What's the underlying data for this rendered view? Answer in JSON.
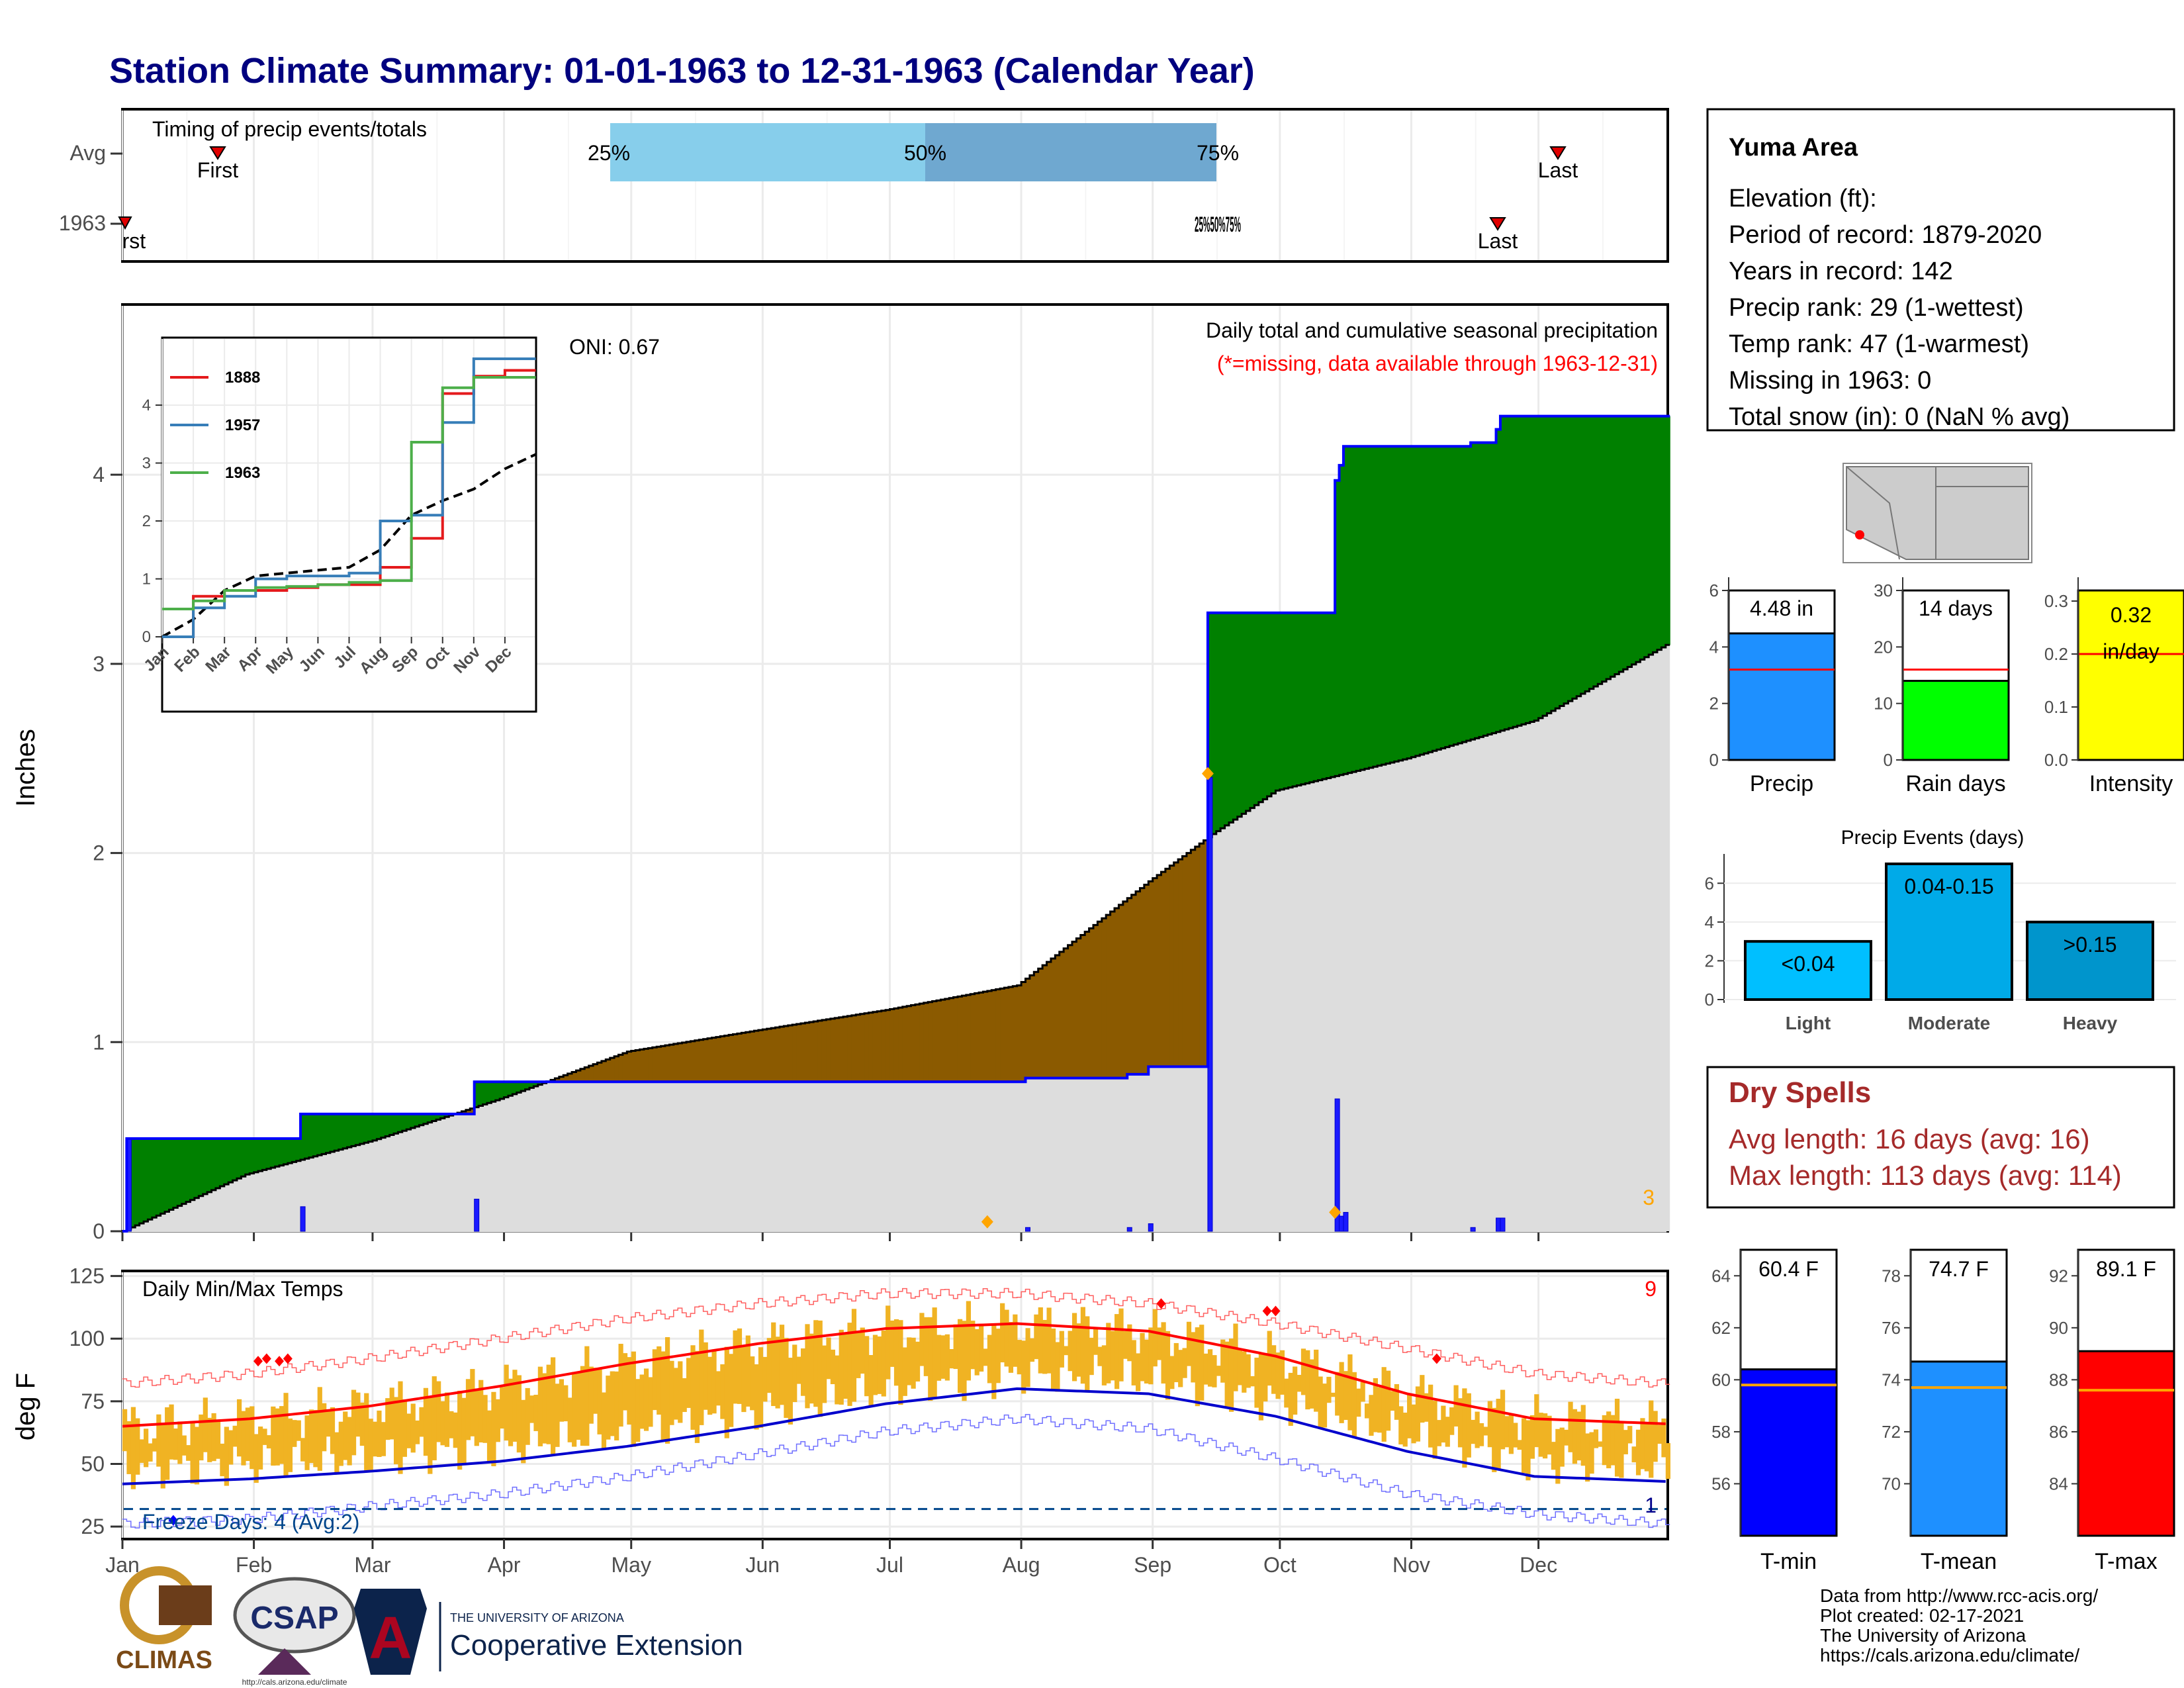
{
  "title": "Station Climate Summary: 01-01-1963 to 12-31-1963 (Calendar Year)",
  "timing": {
    "label": "Timing of precip events/totals",
    "rows": [
      "Avg",
      "1963"
    ],
    "avg": {
      "first_label": "First",
      "last_label": "Last",
      "q25": "25%",
      "q50": "50%",
      "q75": "75%"
    },
    "y1963": {
      "first_label": "First",
      "last_label": "Last",
      "overlap_label": "25%50%75%"
    }
  },
  "months": [
    "Jan",
    "Feb",
    "Mar",
    "Apr",
    "May",
    "Jun",
    "Jul",
    "Aug",
    "Sep",
    "Oct",
    "Nov",
    "Dec"
  ],
  "station": {
    "name": "Yuma Area",
    "lines": [
      "Elevation (ft):",
      "Period of record: 1879-2020",
      "Years in record: 142",
      "Precip rank: 29 (1-wettest)",
      "Temp rank: 47 (1-warmest)",
      "Missing in 1963: 0",
      "Total snow (in): 0 (NaN % avg)"
    ]
  },
  "precip_panel": {
    "ylabel": "Inches",
    "annotation1": "Daily total and cumulative seasonal precipitation",
    "annotation2": "(*=missing, data available through 1963-12-31)",
    "oni": "ONI: 0.67",
    "corner_count": "3",
    "colors": {
      "above": "#008000",
      "below": "#8b5a00",
      "cum_line": "#0000ff",
      "normal": "#dddddd",
      "daily": "#1a1aff",
      "marker": "#ffa500"
    }
  },
  "inset": {
    "legend": [
      "1888",
      "1957",
      "1963"
    ],
    "colors": [
      "#e41a1c",
      "#377eb8",
      "#4daf4a"
    ]
  },
  "mini_bars": [
    {
      "label": "Precip",
      "value_label": "4.48 in",
      "color": "#1e90ff"
    },
    {
      "label": "Rain days",
      "value_label": "14 days",
      "color": "#00ff00"
    },
    {
      "label": "Intensity",
      "value_label": "0.32 in/day",
      "color": "#ffff00"
    }
  ],
  "events": {
    "title": "Precip Events (days)",
    "categories": [
      "Light",
      "Moderate",
      "Heavy"
    ],
    "labels": [
      "<0.04",
      "0.04-0.15",
      ">0.15"
    ],
    "colors": [
      "#00bfff",
      "#00aae8",
      "#0095cc"
    ]
  },
  "dry_spells": {
    "title": "Dry Spells",
    "avg": "Avg length: 16 days (avg: 16)",
    "max": "Max length: 113 days (avg: 114)"
  },
  "temp_panel": {
    "label": "Daily Min/Max Temps",
    "ylabel": "deg F",
    "freeze": "Freeze Days: 4 (Avg:2)",
    "count_top": "9",
    "count_bottom": "1"
  },
  "temp_bars": [
    {
      "label": "T-min",
      "value_label": "60.4 F",
      "color": "#0000ff"
    },
    {
      "label": "T-mean",
      "value_label": "74.7 F",
      "color": "#1e90ff"
    },
    {
      "label": "T-max",
      "value_label": "89.1 F",
      "color": "#ff0000"
    }
  ],
  "footer": {
    "lines": [
      "Data from http://www.rcc-acis.org/",
      "Plot created: 02-17-2021",
      "The University of Arizona",
      "https://cals.arizona.edu/climate/"
    ],
    "climas": "CLIMAS",
    "csap": "CSAP",
    "csap_url": "http://cals.arizona.edu/climate",
    "ua_small": "THE UNIVERSITY OF ARIZONA",
    "ua_big": "Cooperative Extension"
  },
  "chart_data": [
    {
      "type": "area",
      "title": "Daily total and cumulative seasonal precipitation",
      "ylabel": "Inches",
      "xlabel": "",
      "ylim": [
        0,
        4.9
      ],
      "x_unit": "day of year 1963",
      "cumulative_1963": [
        [
          1,
          0.49
        ],
        [
          88,
          0.49
        ],
        [
          89,
          0.62
        ],
        [
          168,
          0.62
        ],
        [
          169,
          0.8
        ],
        [
          412,
          0.8
        ],
        [
          413,
          0.84
        ],
        [
          474,
          0.84
        ],
        [
          475,
          0.85
        ],
        [
          524,
          0.85
        ],
        [
          525,
          0.87
        ],
        [
          553,
          0.87
        ],
        [
          554,
          0.9
        ],
        [
          557,
          0.9
        ],
        [
          558,
          0.94
        ],
        [
          589,
          0.94
        ],
        [
          590,
          0.96
        ],
        [
          258,
          3.36
        ],
        [
          283,
          3.36
        ],
        [
          284,
          3.48
        ],
        [
          285,
          4.2
        ],
        [
          286,
          4.3
        ],
        [
          326,
          4.3
        ],
        [
          327,
          4.42
        ],
        [
          328,
          4.48
        ],
        [
          365,
          4.48
        ]
      ],
      "normal_cumulative": [
        [
          1,
          0.0
        ],
        [
          30,
          0.3
        ],
        [
          60,
          0.48
        ],
        [
          90,
          0.7
        ],
        [
          120,
          0.95
        ],
        [
          150,
          1.06
        ],
        [
          181,
          1.17
        ],
        [
          212,
          1.3
        ],
        [
          243,
          1.85
        ],
        [
          258,
          2.1
        ],
        [
          273,
          2.33
        ],
        [
          304,
          2.5
        ],
        [
          334,
          2.7
        ],
        [
          365,
          3.1
        ]
      ],
      "daily_precip": [
        [
          2,
          0.49
        ],
        [
          43,
          0.13
        ],
        [
          84,
          0.17
        ],
        [
          257,
          2.4
        ],
        [
          287,
          0.7
        ],
        [
          288,
          0.08
        ],
        [
          289,
          0.1
        ],
        [
          214,
          0.02
        ],
        [
          238,
          0.02
        ],
        [
          243,
          0.04
        ],
        [
          325,
          0.07
        ],
        [
          326,
          0.07
        ],
        [
          319,
          0.02
        ]
      ]
    },
    {
      "type": "line",
      "title": "",
      "x_unit": "month of year",
      "x": [
        1,
        2,
        3,
        4,
        5,
        6,
        7,
        8,
        9,
        10,
        11,
        12,
        12.99
      ],
      "series": [
        {
          "name": "1888",
          "values": [
            0,
            0.7,
            0.8,
            0.8,
            0.85,
            0.9,
            0.9,
            1.2,
            1.7,
            4.2,
            4.5,
            4.6,
            4.6
          ]
        },
        {
          "name": "1957",
          "values": [
            0,
            0.5,
            0.7,
            1.0,
            1.05,
            1.05,
            1.1,
            2.0,
            2.1,
            3.7,
            4.8,
            4.8,
            4.8
          ]
        },
        {
          "name": "1963",
          "values": [
            0.48,
            0.62,
            0.8,
            0.85,
            0.87,
            0.9,
            0.94,
            0.97,
            3.36,
            4.3,
            4.48,
            4.48,
            4.48
          ]
        }
      ],
      "reference_series": {
        "values": [
          0,
          0.3,
          0.8,
          1.05,
          1.1,
          1.15,
          1.2,
          1.5,
          2.1,
          2.35,
          2.55,
          2.9,
          3.15
        ]
      },
      "ylim": [
        0,
        4.8
      ]
    },
    {
      "type": "bar",
      "title": "",
      "categories": [
        "Precip",
        "Rain days",
        "Intensity"
      ],
      "values": [
        4.48,
        14,
        0.32
      ],
      "normals": [
        3.2,
        16,
        0.2
      ],
      "ylims": [
        [
          0,
          6
        ],
        [
          0,
          30
        ],
        [
          0,
          0.32
        ]
      ]
    },
    {
      "type": "bar",
      "title": "Precip Events (days)",
      "categories": [
        "Light",
        "Moderate",
        "Heavy"
      ],
      "values": [
        3,
        7,
        4
      ],
      "ylim": [
        0,
        7
      ]
    },
    {
      "type": "line",
      "title": "",
      "ylabel": "deg F",
      "ylim": [
        20,
        127
      ],
      "x_unit": "day of year 1963",
      "normal_max": [
        [
          1,
          65
        ],
        [
          31,
          68
        ],
        [
          59,
          73
        ],
        [
          90,
          81
        ],
        [
          120,
          90
        ],
        [
          151,
          98
        ],
        [
          181,
          104
        ],
        [
          212,
          106
        ],
        [
          243,
          103
        ],
        [
          273,
          93
        ],
        [
          304,
          78
        ],
        [
          334,
          68
        ],
        [
          365,
          66
        ]
      ],
      "normal_min": [
        [
          1,
          42
        ],
        [
          31,
          44
        ],
        [
          59,
          47
        ],
        [
          90,
          51
        ],
        [
          120,
          57
        ],
        [
          151,
          65
        ],
        [
          181,
          74
        ],
        [
          212,
          80
        ],
        [
          243,
          78
        ],
        [
          273,
          69
        ],
        [
          304,
          55
        ],
        [
          334,
          45
        ],
        [
          365,
          43
        ]
      ],
      "record_max": [
        [
          1,
          82
        ],
        [
          31,
          86
        ],
        [
          59,
          92
        ],
        [
          90,
          100
        ],
        [
          120,
          108
        ],
        [
          151,
          114
        ],
        [
          181,
          118
        ],
        [
          212,
          118
        ],
        [
          243,
          114
        ],
        [
          273,
          106
        ],
        [
          304,
          96
        ],
        [
          334,
          86
        ],
        [
          365,
          82
        ]
      ],
      "record_min": [
        [
          1,
          26
        ],
        [
          31,
          28
        ],
        [
          59,
          33
        ],
        [
          90,
          38
        ],
        [
          120,
          45
        ],
        [
          151,
          54
        ],
        [
          181,
          63
        ],
        [
          212,
          68
        ],
        [
          243,
          64
        ],
        [
          273,
          52
        ],
        [
          304,
          38
        ],
        [
          334,
          30
        ],
        [
          365,
          26
        ]
      ],
      "freeze_line": 32,
      "freeze_days": [
        [
          13,
          27.5
        ]
      ],
      "record_high_markers": [
        [
          33,
          91
        ],
        [
          35,
          92
        ],
        [
          38,
          91
        ],
        [
          40,
          92
        ],
        [
          246,
          114
        ],
        [
          271,
          111
        ],
        [
          273,
          111
        ],
        [
          311,
          92
        ]
      ]
    },
    {
      "type": "bar",
      "title": "",
      "categories": [
        "T-min",
        "T-mean",
        "T-max"
      ],
      "values": [
        60.4,
        74.7,
        89.1
      ],
      "normals": [
        59.8,
        73.7,
        87.6
      ],
      "ylims": [
        [
          54,
          65
        ],
        [
          68,
          79
        ],
        [
          82,
          93
        ]
      ]
    }
  ]
}
